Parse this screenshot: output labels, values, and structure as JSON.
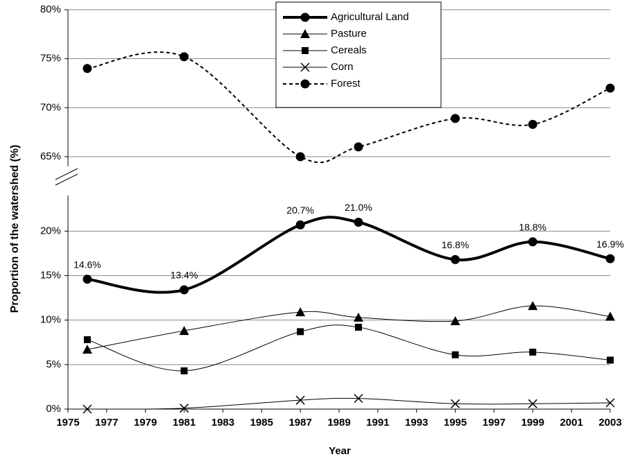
{
  "chart_data": [
    {
      "type": "line",
      "x": [
        1976,
        1981,
        1987,
        1990,
        1995,
        1999,
        2003
      ],
      "xlim": [
        1975,
        2003
      ],
      "ylim": [
        65,
        80
      ],
      "yticks": [
        {
          "value": 65,
          "label": "65%"
        },
        {
          "value": 70,
          "label": "70%"
        },
        {
          "value": 75,
          "label": "75%"
        },
        {
          "value": 80,
          "label": "80%"
        }
      ],
      "grid": true,
      "series": [
        {
          "name": "Forest",
          "color": "#000000",
          "marker": "circle",
          "line_width": 2,
          "dash": true,
          "values": [
            74.0,
            75.2,
            65.0,
            66.0,
            68.9,
            68.3,
            72.0
          ]
        }
      ]
    },
    {
      "type": "line",
      "x_label": "Year",
      "y_label": "Proportion of the watershed (%)",
      "x": [
        1976,
        1981,
        1987,
        1990,
        1995,
        1999,
        2003
      ],
      "xlim": [
        1975,
        2003
      ],
      "xticks": [
        1975,
        1977,
        1979,
        1981,
        1983,
        1985,
        1987,
        1989,
        1991,
        1993,
        1995,
        1997,
        1999,
        2001,
        2003
      ],
      "ylim": [
        0,
        24
      ],
      "yticks": [
        {
          "value": 0,
          "label": "0%"
        },
        {
          "value": 5,
          "label": "5%"
        },
        {
          "value": 10,
          "label": "10%"
        },
        {
          "value": 15,
          "label": "15%"
        },
        {
          "value": 20,
          "label": "20%"
        }
      ],
      "grid": true,
      "series": [
        {
          "name": "Agricultural Land",
          "color": "#000000",
          "marker": "circle",
          "line_width": 4,
          "values": [
            14.6,
            13.4,
            20.7,
            21.0,
            16.8,
            18.8,
            16.9
          ],
          "value_labels": [
            "14.6%",
            "13.4%",
            "20.7%",
            "21.0%",
            "16.8%",
            "18.8%",
            "16.9%"
          ]
        },
        {
          "name": "Pasture",
          "color": "#000000",
          "marker": "triangle",
          "line_width": 1,
          "values": [
            6.7,
            8.8,
            10.9,
            10.3,
            9.9,
            11.6,
            10.4
          ]
        },
        {
          "name": "Cereals",
          "color": "#000000",
          "marker": "square",
          "line_width": 1,
          "values": [
            7.8,
            4.3,
            8.7,
            9.2,
            6.1,
            6.4,
            5.5
          ]
        },
        {
          "name": "Corn",
          "color": "#000000",
          "marker": "cross",
          "line_width": 1,
          "values": [
            0,
            0.1,
            1.0,
            1.2,
            0.6,
            0.6,
            0.7
          ]
        }
      ]
    }
  ]
}
